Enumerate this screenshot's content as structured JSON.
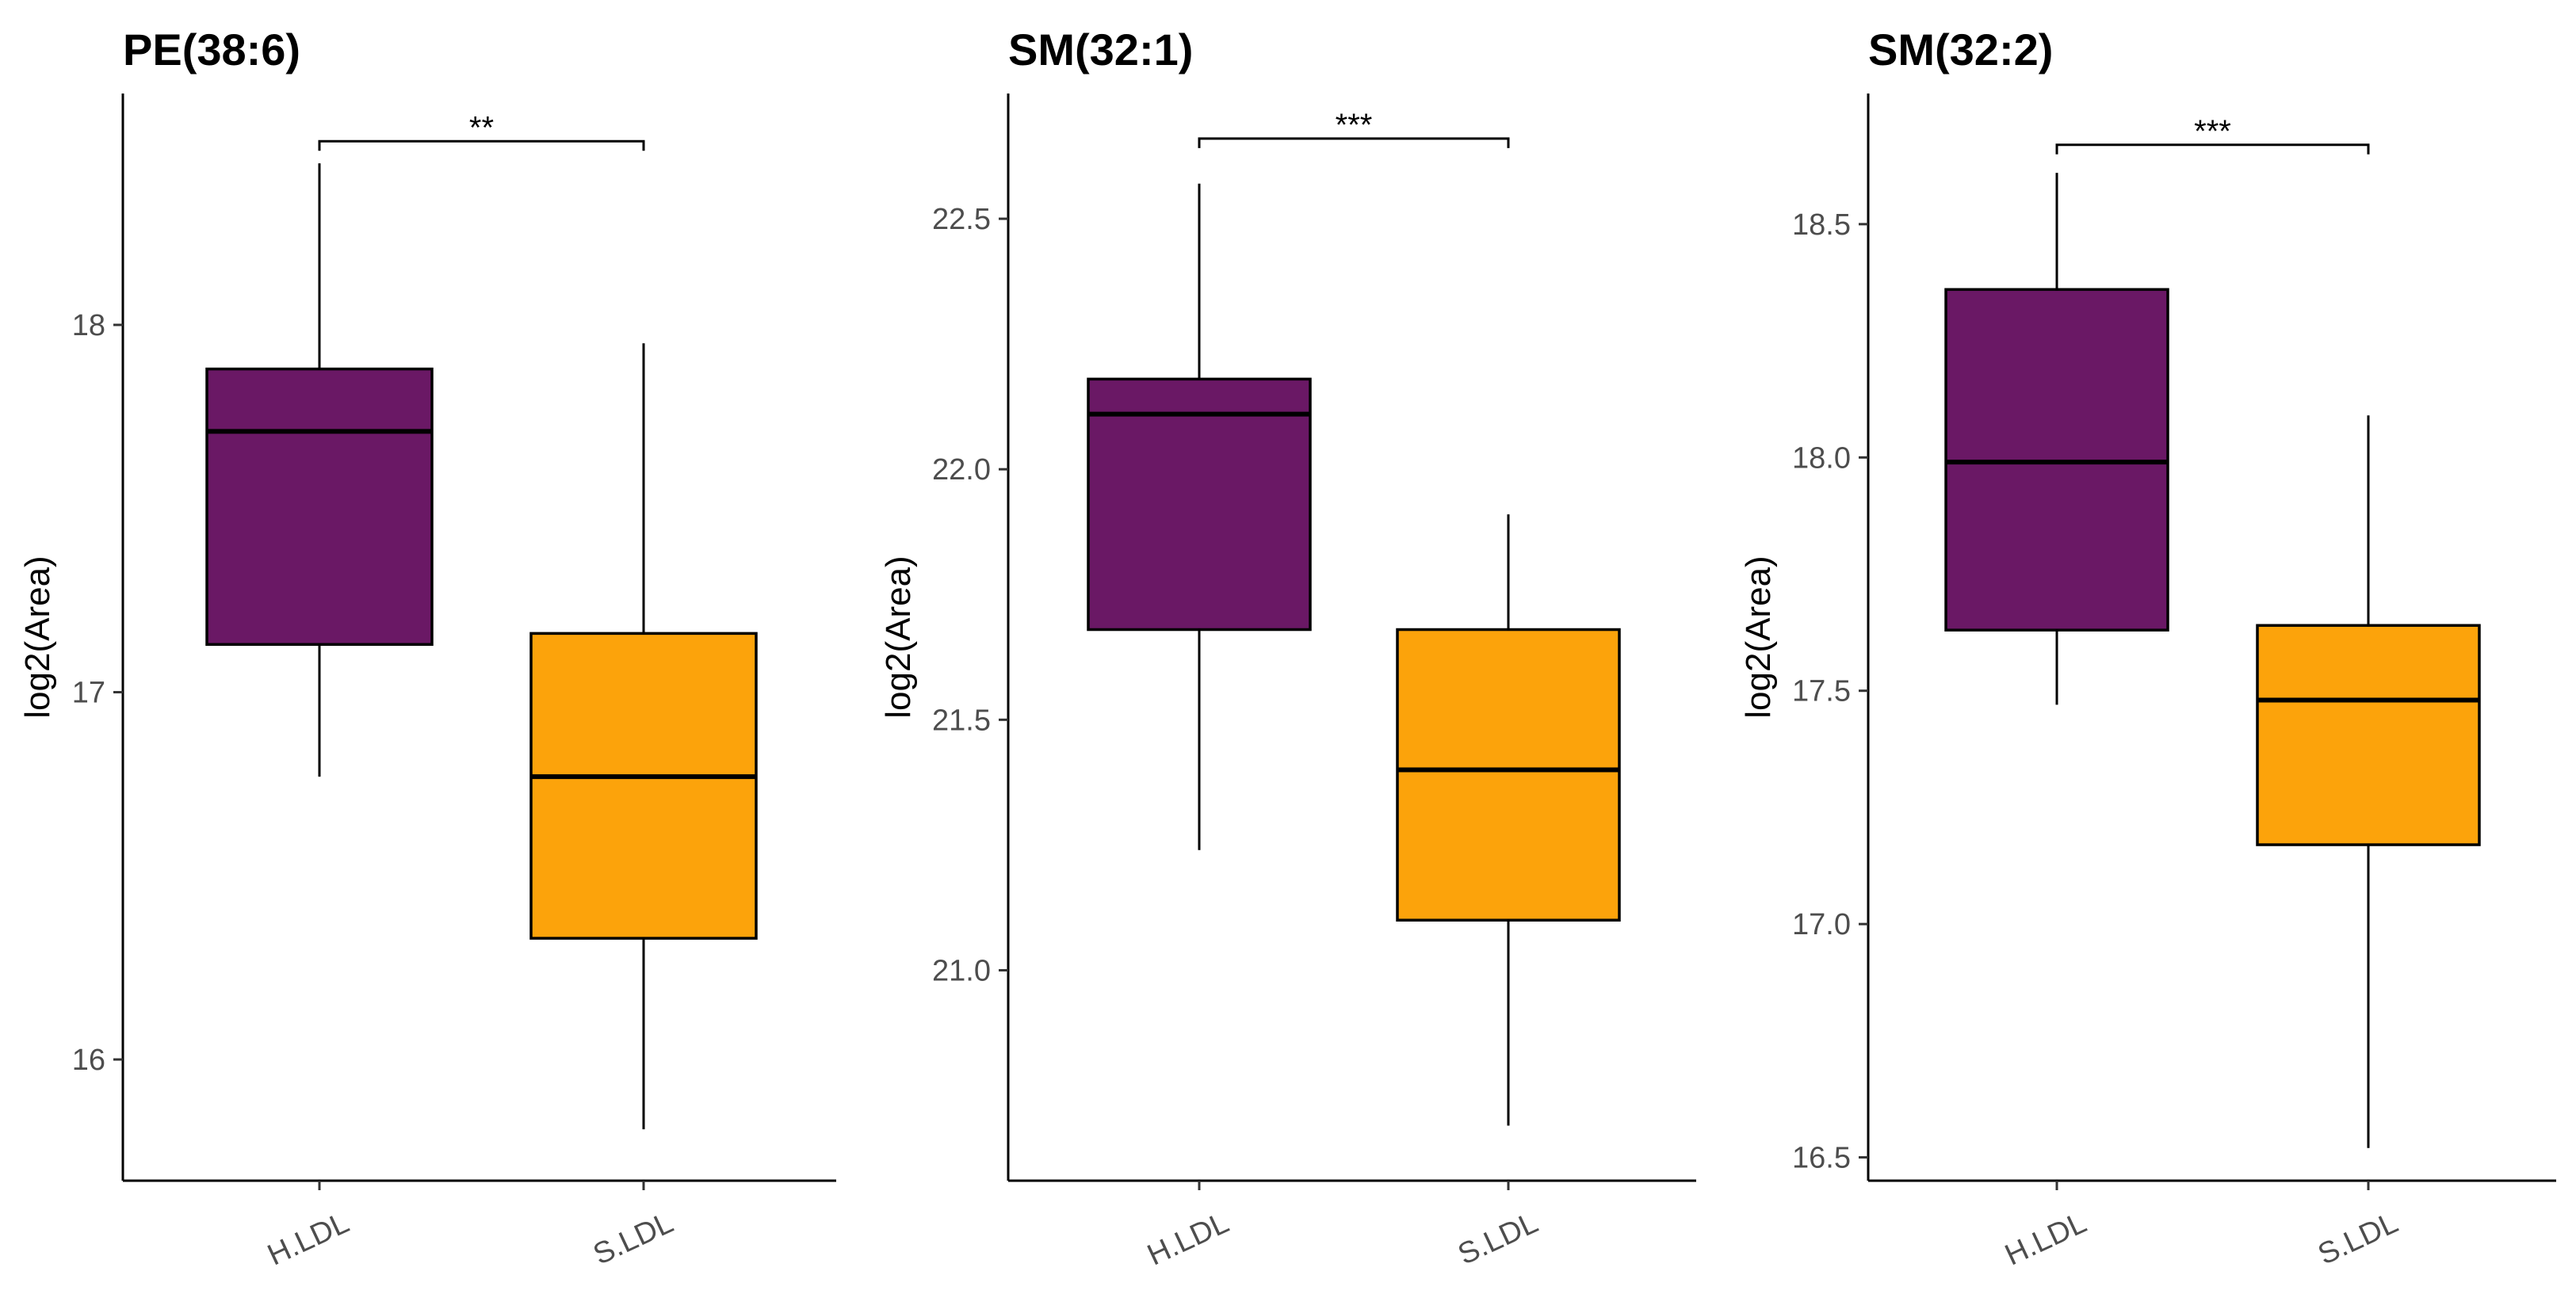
{
  "colors": {
    "H.LDL": "#6A1865",
    "S.LDL": "#FCA30B"
  },
  "chart_data": [
    {
      "type": "boxplot",
      "title": "PE(38:6)",
      "xlabel": "",
      "ylabel": "log2(Area)",
      "ylim": [
        15.67,
        18.63
      ],
      "yticks": [
        16,
        17,
        18
      ],
      "yticklabels": [
        "16",
        "17",
        "18"
      ],
      "categories": [
        "H.LDL",
        "S.LDL"
      ],
      "boxes": [
        {
          "category": "H.LDL",
          "whisker_low": 16.77,
          "q1": 17.13,
          "median": 17.71,
          "q3": 17.88,
          "whisker_high": 18.44
        },
        {
          "category": "S.LDL",
          "whisker_low": 15.81,
          "q1": 16.33,
          "median": 16.77,
          "q3": 17.16,
          "whisker_high": 17.95
        }
      ],
      "significance": {
        "from": "H.LDL",
        "to": "S.LDL",
        "y": 18.5,
        "label": "**"
      }
    },
    {
      "type": "boxplot",
      "title": "SM(32:1)",
      "xlabel": "",
      "ylabel": "log2(Area)",
      "ylim": [
        20.58,
        22.75
      ],
      "yticks": [
        21.0,
        21.5,
        22.0,
        22.5
      ],
      "yticklabels": [
        "21.0",
        "21.5",
        "22.0",
        "22.5"
      ],
      "categories": [
        "H.LDL",
        "S.LDL"
      ],
      "boxes": [
        {
          "category": "H.LDL",
          "whisker_low": 21.24,
          "q1": 21.68,
          "median": 22.11,
          "q3": 22.18,
          "whisker_high": 22.57
        },
        {
          "category": "S.LDL",
          "whisker_low": 20.69,
          "q1": 21.1,
          "median": 21.4,
          "q3": 21.68,
          "whisker_high": 21.91
        }
      ],
      "significance": {
        "from": "H.LDL",
        "to": "S.LDL",
        "y": 22.66,
        "label": "***"
      }
    },
    {
      "type": "boxplot",
      "title": "SM(32:2)",
      "xlabel": "",
      "ylabel": "log2(Area)",
      "ylim": [
        16.45,
        18.78
      ],
      "yticks": [
        16.5,
        17.0,
        17.5,
        18.0,
        18.5
      ],
      "yticklabels": [
        "16.5",
        "17.0",
        "17.5",
        "18.0",
        "18.5"
      ],
      "categories": [
        "H.LDL",
        "S.LDL"
      ],
      "boxes": [
        {
          "category": "H.LDL",
          "whisker_low": 17.47,
          "q1": 17.63,
          "median": 17.99,
          "q3": 18.36,
          "whisker_high": 18.61
        },
        {
          "category": "S.LDL",
          "whisker_low": 16.52,
          "q1": 17.17,
          "median": 17.48,
          "q3": 17.64,
          "whisker_high": 18.09
        }
      ],
      "significance": {
        "from": "H.LDL",
        "to": "S.LDL",
        "y": 18.67,
        "label": "***"
      }
    }
  ]
}
